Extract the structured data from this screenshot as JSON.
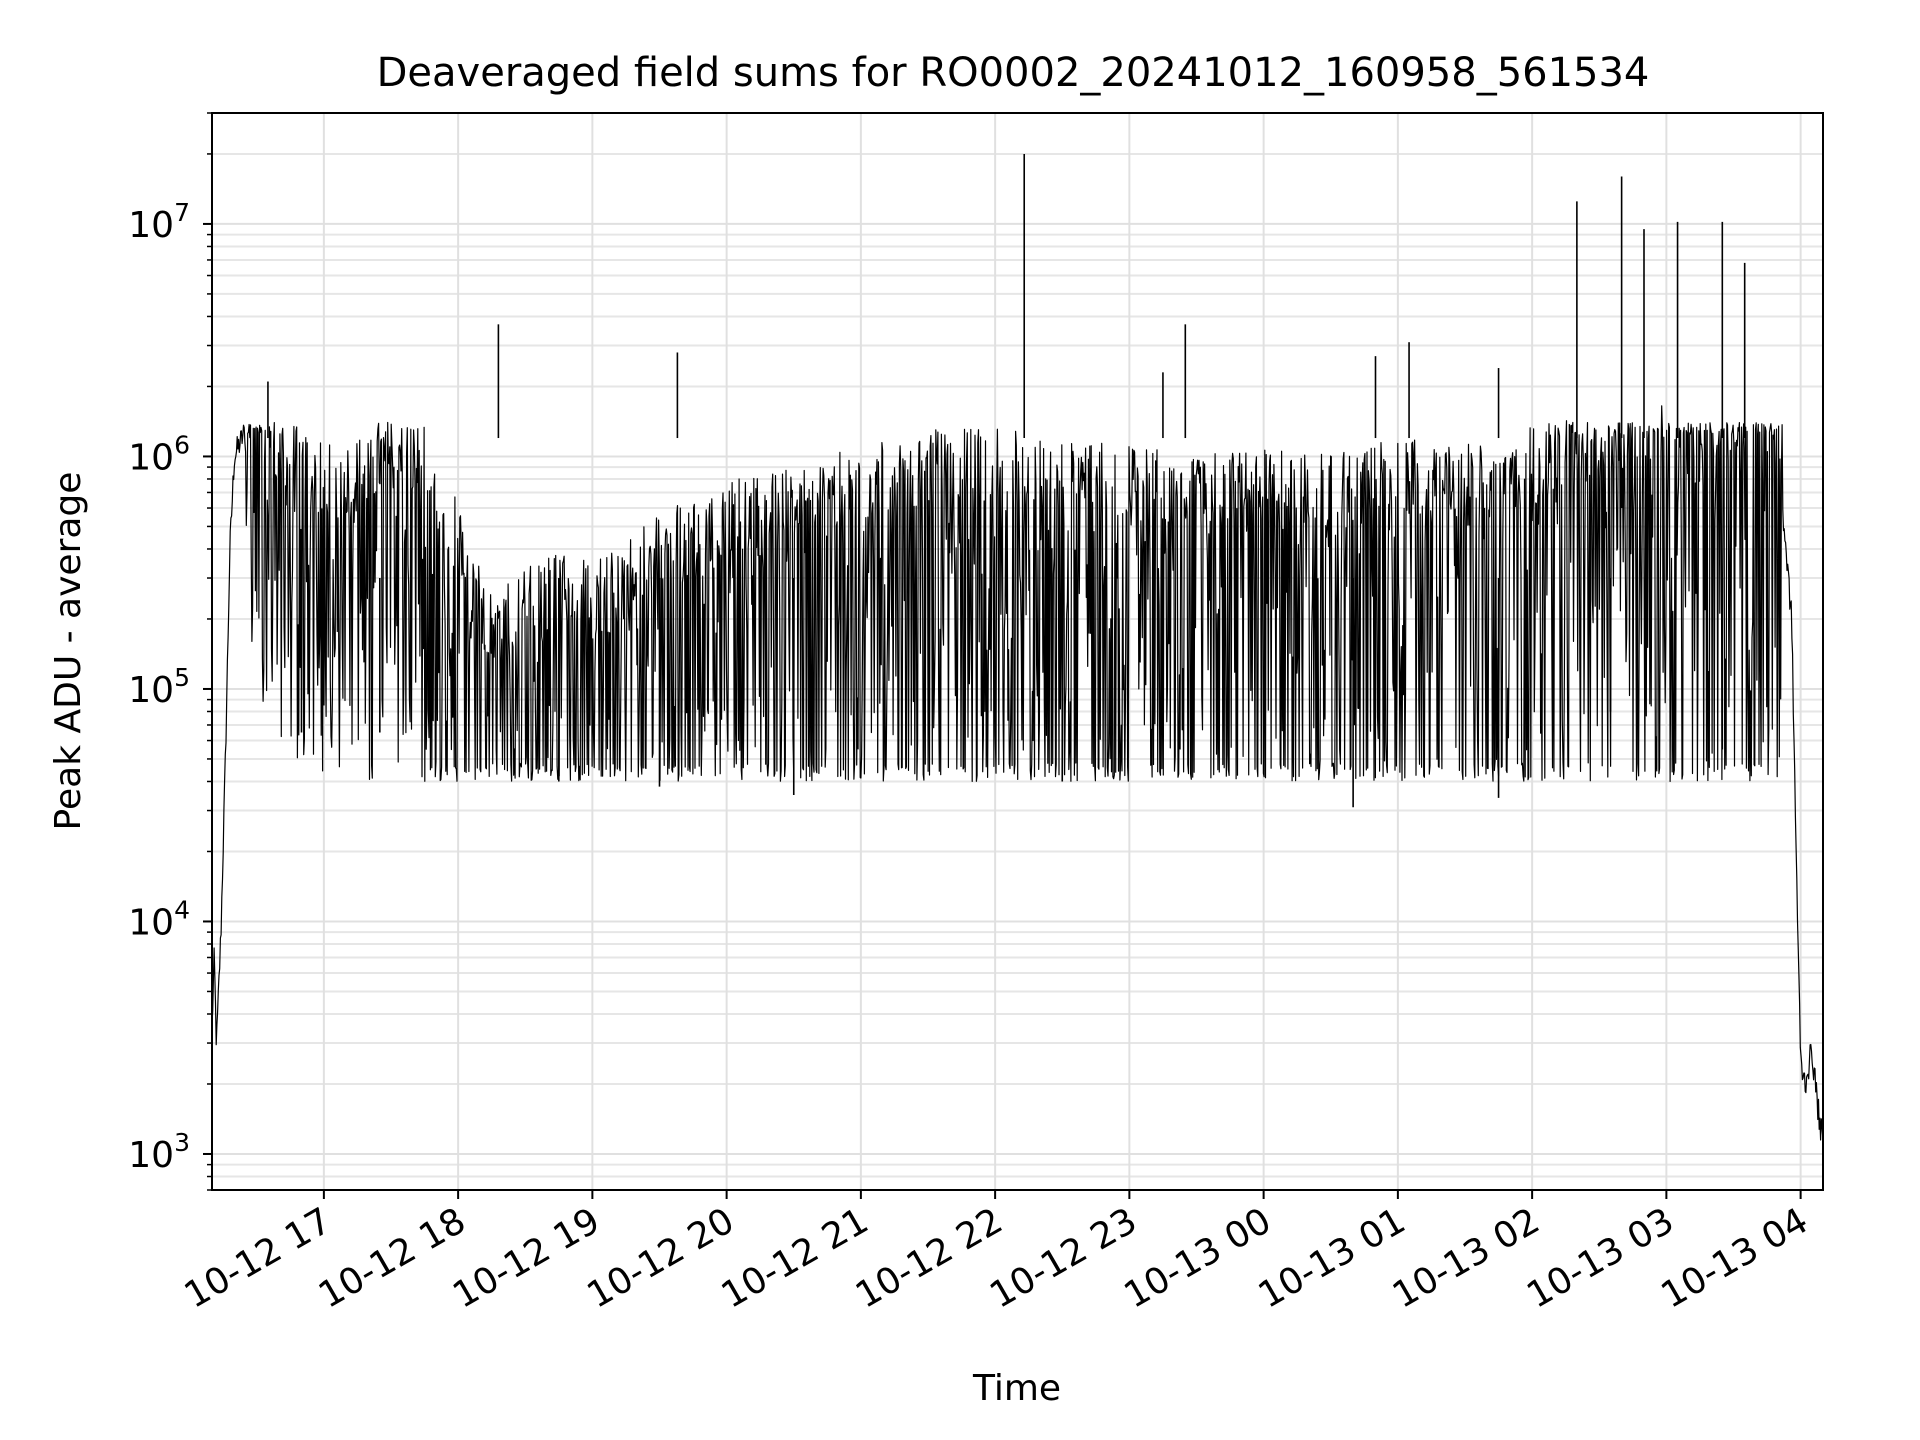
{
  "chart_data": {
    "type": "line",
    "title": "Deaveraged field sums for RO0002_20241012_160958_561534",
    "xlabel": "Time",
    "ylabel": "Peak ADU - average",
    "xlim": [
      "2024-10-12T16:10",
      "2024-10-13T04:10"
    ],
    "ylim": [
      700,
      30000000
    ],
    "y_scale": "log",
    "grid": true,
    "line_color": "#000000",
    "x_ticks": [
      {
        "value": "2024-10-12T17:00",
        "label": "10-12 17"
      },
      {
        "value": "2024-10-12T18:00",
        "label": "10-12 18"
      },
      {
        "value": "2024-10-12T19:00",
        "label": "10-12 19"
      },
      {
        "value": "2024-10-12T20:00",
        "label": "10-12 20"
      },
      {
        "value": "2024-10-12T21:00",
        "label": "10-12 21"
      },
      {
        "value": "2024-10-12T22:00",
        "label": "10-12 22"
      },
      {
        "value": "2024-10-12T23:00",
        "label": "10-12 23"
      },
      {
        "value": "2024-10-13T00:00",
        "label": "10-13 00"
      },
      {
        "value": "2024-10-13T01:00",
        "label": "10-13 01"
      },
      {
        "value": "2024-10-13T02:00",
        "label": "10-13 02"
      },
      {
        "value": "2024-10-13T03:00",
        "label": "10-13 03"
      },
      {
        "value": "2024-10-13T04:00",
        "label": "10-13 04"
      }
    ],
    "y_ticks": [
      {
        "value": 1000,
        "base": "10",
        "exp": "3"
      },
      {
        "value": 10000,
        "base": "10",
        "exp": "4"
      },
      {
        "value": 100000,
        "base": "10",
        "exp": "5"
      },
      {
        "value": 1000000,
        "base": "10",
        "exp": "6"
      },
      {
        "value": 10000000,
        "base": "10",
        "exp": "7"
      }
    ],
    "series": [
      {
        "x": [
          "2024-10-12T16:10",
          "2024-10-12T16:11",
          "2024-10-12T16:12",
          "2024-10-12T16:14",
          "2024-10-12T16:16",
          "2024-10-12T16:18",
          "2024-10-12T16:20",
          "2024-10-12T16:25",
          "2024-10-12T16:30",
          "2024-10-12T16:40",
          "2024-10-12T16:50",
          "2024-10-12T17:00",
          "2024-10-12T17:15",
          "2024-10-12T17:30",
          "2024-10-12T17:45",
          "2024-10-12T18:00",
          "2024-10-12T18:15",
          "2024-10-12T18:30",
          "2024-10-12T18:45",
          "2024-10-12T19:00",
          "2024-10-12T19:15",
          "2024-10-12T19:30",
          "2024-10-12T19:45",
          "2024-10-12T20:00",
          "2024-10-12T20:30",
          "2024-10-12T21:00",
          "2024-10-12T21:30",
          "2024-10-12T22:00",
          "2024-10-12T22:30",
          "2024-10-12T23:00",
          "2024-10-12T23:30",
          "2024-10-13T00:00",
          "2024-10-13T00:30",
          "2024-10-13T01:00",
          "2024-10-13T01:30",
          "2024-10-13T02:00",
          "2024-10-13T02:30",
          "2024-10-13T03:00",
          "2024-10-13T03:30",
          "2024-10-13T03:50",
          "2024-10-13T03:56",
          "2024-10-13T03:58",
          "2024-10-13T04:00",
          "2024-10-13T04:02",
          "2024-10-13T04:05",
          "2024-10-13T04:08",
          "2024-10-13T04:10"
        ],
        "y": [
          3500,
          7000,
          2900,
          9000,
          50000,
          400000,
          1000000,
          1300000,
          1100000,
          700000,
          600000,
          500000,
          550000,
          700000,
          600000,
          300000,
          120000,
          150000,
          180000,
          160000,
          200000,
          250000,
          300000,
          350000,
          400000,
          500000,
          600000,
          600000,
          550000,
          500000,
          450000,
          500000,
          450000,
          550000,
          500000,
          600000,
          800000,
          1000000,
          900000,
          1000000,
          200000,
          20000,
          2500,
          2000,
          2800,
          1500,
          1100
        ]
      }
    ],
    "peaks": [
      {
        "x": "2024-10-12T16:35",
        "y": 2100000
      },
      {
        "x": "2024-10-12T18:18",
        "y": 3700000
      },
      {
        "x": "2024-10-12T19:38",
        "y": 2800000
      },
      {
        "x": "2024-10-12T22:13",
        "y": 20000000
      },
      {
        "x": "2024-10-12T23:15",
        "y": 2300000
      },
      {
        "x": "2024-10-12T23:25",
        "y": 3700000
      },
      {
        "x": "2024-10-13T00:50",
        "y": 2700000
      },
      {
        "x": "2024-10-13T01:05",
        "y": 3100000
      },
      {
        "x": "2024-10-13T01:45",
        "y": 2400000
      },
      {
        "x": "2024-10-13T02:20",
        "y": 12500000
      },
      {
        "x": "2024-10-13T02:40",
        "y": 16000000
      },
      {
        "x": "2024-10-13T02:50",
        "y": 9500000
      },
      {
        "x": "2024-10-13T03:05",
        "y": 10200000
      },
      {
        "x": "2024-10-13T03:25",
        "y": 10200000
      },
      {
        "x": "2024-10-13T03:35",
        "y": 6800000
      }
    ],
    "troughs": [
      {
        "x": "2024-10-12T16:50",
        "y": 65000
      },
      {
        "x": "2024-10-12T17:25",
        "y": 65000
      },
      {
        "x": "2024-10-12T18:45",
        "y": 40000
      },
      {
        "x": "2024-10-12T19:30",
        "y": 38000
      },
      {
        "x": "2024-10-12T20:30",
        "y": 35000
      },
      {
        "x": "2024-10-12T22:30",
        "y": 40000
      },
      {
        "x": "2024-10-13T00:40",
        "y": 31000
      },
      {
        "x": "2024-10-13T01:45",
        "y": 34000
      },
      {
        "x": "2024-10-13T02:35",
        "y": 80000
      },
      {
        "x": "2024-10-13T03:25",
        "y": 55000
      }
    ]
  }
}
